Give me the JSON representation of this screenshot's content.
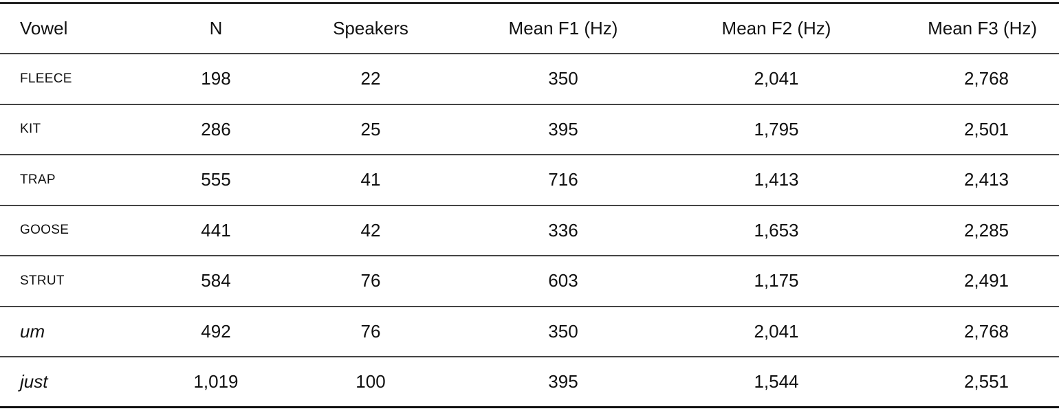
{
  "table": {
    "headers": [
      "Vowel",
      "N",
      "Speakers",
      "Mean F1 (Hz)",
      "Mean F2 (Hz)",
      "Mean F3 (Hz)"
    ],
    "rows": [
      {
        "vowel": "FLEECE",
        "style": "smallcaps",
        "n": "198",
        "speakers": "22",
        "f1": "350",
        "f2": "2,041",
        "f3": "2,768"
      },
      {
        "vowel": "KIT",
        "style": "smallcaps",
        "n": "286",
        "speakers": "25",
        "f1": "395",
        "f2": "1,795",
        "f3": "2,501"
      },
      {
        "vowel": "TRAP",
        "style": "smallcaps",
        "n": "555",
        "speakers": "41",
        "f1": "716",
        "f2": "1,413",
        "f3": "2,413"
      },
      {
        "vowel": "GOOSE",
        "style": "smallcaps",
        "n": "441",
        "speakers": "42",
        "f1": "336",
        "f2": "1,653",
        "f3": "2,285"
      },
      {
        "vowel": "STRUT",
        "style": "smallcaps",
        "n": "584",
        "speakers": "76",
        "f1": "603",
        "f2": "1,175",
        "f3": "2,491"
      },
      {
        "vowel": "um",
        "style": "italic",
        "n": "492",
        "speakers": "76",
        "f1": "350",
        "f2": "2,041",
        "f3": "2,768"
      },
      {
        "vowel": "just",
        "style": "italic",
        "n": "1,019",
        "speakers": "100",
        "f1": "395",
        "f2": "1,544",
        "f3": "2,551"
      }
    ]
  }
}
